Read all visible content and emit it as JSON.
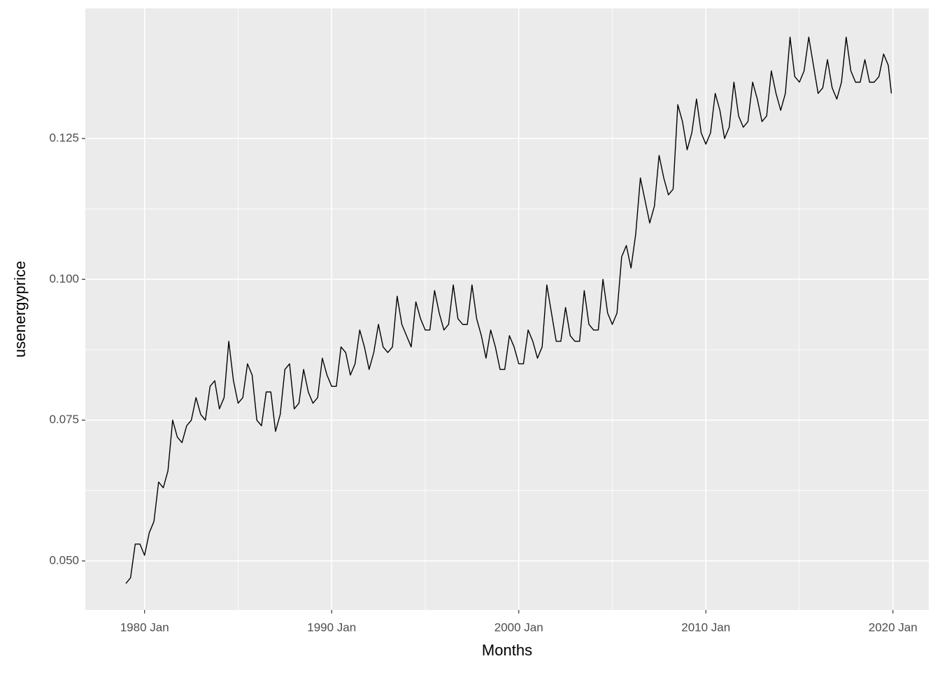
{
  "chart_data": {
    "type": "line",
    "x_label": "Months",
    "y_label": "usenergyprice",
    "x": [
      "1979 Jan",
      "1979 Apr",
      "1979 Jul",
      "1979 Oct",
      "1980 Jan",
      "1980 Apr",
      "1980 Jul",
      "1980 Oct",
      "1981 Jan",
      "1981 Apr",
      "1981 Jul",
      "1981 Oct",
      "1982 Jan",
      "1982 Apr",
      "1982 Jul",
      "1982 Oct",
      "1983 Jan",
      "1983 Apr",
      "1983 Jul",
      "1983 Oct",
      "1984 Jan",
      "1984 Apr",
      "1984 Jul",
      "1984 Oct",
      "1985 Jan",
      "1985 Apr",
      "1985 Jul",
      "1985 Oct",
      "1986 Jan",
      "1986 Apr",
      "1986 Jul",
      "1986 Oct",
      "1987 Jan",
      "1987 Apr",
      "1987 Jul",
      "1987 Oct",
      "1988 Jan",
      "1988 Apr",
      "1988 Jul",
      "1988 Oct",
      "1989 Jan",
      "1989 Apr",
      "1989 Jul",
      "1989 Oct",
      "1990 Jan",
      "1990 Apr",
      "1990 Jul",
      "1990 Oct",
      "1991 Jan",
      "1991 Apr",
      "1991 Jul",
      "1991 Oct",
      "1992 Jan",
      "1992 Apr",
      "1992 Jul",
      "1992 Oct",
      "1993 Jan",
      "1993 Apr",
      "1993 Jul",
      "1993 Oct",
      "1994 Jan",
      "1994 Apr",
      "1994 Jul",
      "1994 Oct",
      "1995 Jan",
      "1995 Apr",
      "1995 Jul",
      "1995 Oct",
      "1996 Jan",
      "1996 Apr",
      "1996 Jul",
      "1996 Oct",
      "1997 Jan",
      "1997 Apr",
      "1997 Jul",
      "1997 Oct",
      "1998 Jan",
      "1998 Apr",
      "1998 Jul",
      "1998 Oct",
      "1999 Jan",
      "1999 Apr",
      "1999 Jul",
      "1999 Oct",
      "2000 Jan",
      "2000 Apr",
      "2000 Jul",
      "2000 Oct",
      "2001 Jan",
      "2001 Apr",
      "2001 Jul",
      "2001 Oct",
      "2002 Jan",
      "2002 Apr",
      "2002 Jul",
      "2002 Oct",
      "2003 Jan",
      "2003 Apr",
      "2003 Jul",
      "2003 Oct",
      "2004 Jan",
      "2004 Apr",
      "2004 Jul",
      "2004 Oct",
      "2005 Jan",
      "2005 Apr",
      "2005 Jul",
      "2005 Oct",
      "2006 Jan",
      "2006 Apr",
      "2006 Jul",
      "2006 Oct",
      "2007 Jan",
      "2007 Apr",
      "2007 Jul",
      "2007 Oct",
      "2008 Jan",
      "2008 Apr",
      "2008 Jul",
      "2008 Oct",
      "2009 Jan",
      "2009 Apr",
      "2009 Jul",
      "2009 Oct",
      "2010 Jan",
      "2010 Apr",
      "2010 Jul",
      "2010 Oct",
      "2011 Jan",
      "2011 Apr",
      "2011 Jul",
      "2011 Oct",
      "2012 Jan",
      "2012 Apr",
      "2012 Jul",
      "2012 Oct",
      "2013 Jan",
      "2013 Apr",
      "2013 Jul",
      "2013 Oct",
      "2014 Jan",
      "2014 Apr",
      "2014 Jul",
      "2014 Oct",
      "2015 Jan",
      "2015 Apr",
      "2015 Jul",
      "2015 Oct",
      "2016 Jan",
      "2016 Apr",
      "2016 Jul",
      "2016 Oct",
      "2017 Jan",
      "2017 Apr",
      "2017 Jul",
      "2017 Oct",
      "2018 Jan",
      "2018 Apr",
      "2018 Jul",
      "2018 Oct",
      "2019 Jan",
      "2019 Apr",
      "2019 Jul",
      "2019 Oct",
      "2019 Dec"
    ],
    "values": [
      0.046,
      0.047,
      0.053,
      0.053,
      0.051,
      0.055,
      0.057,
      0.064,
      0.063,
      0.066,
      0.075,
      0.072,
      0.071,
      0.074,
      0.075,
      0.079,
      0.076,
      0.075,
      0.081,
      0.082,
      0.077,
      0.079,
      0.089,
      0.082,
      0.078,
      0.079,
      0.085,
      0.083,
      0.075,
      0.074,
      0.08,
      0.08,
      0.073,
      0.076,
      0.084,
      0.085,
      0.077,
      0.078,
      0.084,
      0.08,
      0.078,
      0.079,
      0.086,
      0.083,
      0.081,
      0.081,
      0.088,
      0.087,
      0.083,
      0.085,
      0.091,
      0.088,
      0.084,
      0.087,
      0.092,
      0.088,
      0.087,
      0.088,
      0.097,
      0.092,
      0.09,
      0.088,
      0.096,
      0.093,
      0.091,
      0.091,
      0.098,
      0.094,
      0.091,
      0.092,
      0.099,
      0.093,
      0.092,
      0.092,
      0.099,
      0.093,
      0.09,
      0.086,
      0.091,
      0.088,
      0.084,
      0.084,
      0.09,
      0.088,
      0.085,
      0.085,
      0.091,
      0.089,
      0.086,
      0.088,
      0.099,
      0.094,
      0.089,
      0.089,
      0.095,
      0.09,
      0.089,
      0.089,
      0.098,
      0.092,
      0.091,
      0.091,
      0.1,
      0.094,
      0.092,
      0.094,
      0.104,
      0.106,
      0.102,
      0.108,
      0.118,
      0.114,
      0.11,
      0.113,
      0.122,
      0.118,
      0.115,
      0.116,
      0.131,
      0.128,
      0.123,
      0.126,
      0.132,
      0.126,
      0.124,
      0.126,
      0.133,
      0.13,
      0.125,
      0.127,
      0.135,
      0.129,
      0.127,
      0.128,
      0.135,
      0.132,
      0.128,
      0.129,
      0.137,
      0.133,
      0.13,
      0.133,
      0.143,
      0.136,
      0.135,
      0.137,
      0.143,
      0.138,
      0.133,
      0.134,
      0.139,
      0.134,
      0.132,
      0.135,
      0.143,
      0.137,
      0.135,
      0.135,
      0.139,
      0.135,
      0.135,
      0.136,
      0.14,
      0.138,
      0.133
    ],
    "color": "#000000",
    "xlim": [
      "1976 Nov",
      "2021 Dec"
    ],
    "xticks": [
      "1980 Jan",
      "1990 Jan",
      "2000 Jan",
      "2010 Jan",
      "2020 Jan"
    ],
    "ylim": [
      0.0413,
      0.1481
    ],
    "yticks": [
      {
        "value": 0.05,
        "label": "0.050"
      },
      0.075,
      {
        "value": 0.1,
        "label": "0.100"
      },
      0.125
    ],
    "grid": true
  }
}
